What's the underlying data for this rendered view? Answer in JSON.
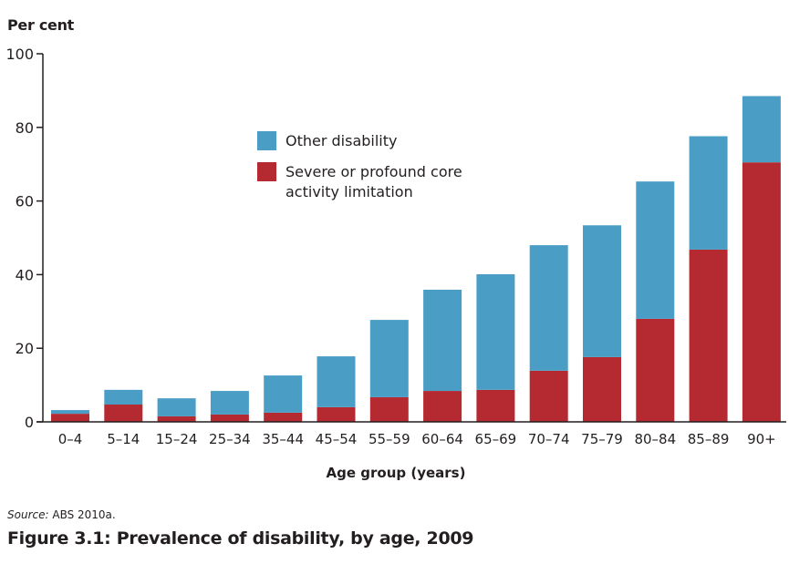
{
  "chart_data": {
    "type": "bar",
    "stacked": true,
    "title": "Figure 3.1: Prevalence of disability, by age, 2009",
    "source_prefix": "Source:",
    "source_text": "ABS 2010a.",
    "xlabel": "Age group (years)",
    "ylabel": "Per cent",
    "ylim": [
      0,
      100
    ],
    "yticks": [
      0,
      20,
      40,
      60,
      80,
      100
    ],
    "grid": false,
    "legend_position": "top-center",
    "categories": [
      "0–4",
      "5–14",
      "15–24",
      "25–34",
      "35–44",
      "45–54",
      "55–59",
      "60–64",
      "65–69",
      "70–74",
      "75–79",
      "80–84",
      "85–89",
      "90+"
    ],
    "series": [
      {
        "name": "Severe or profound core activity limitation",
        "color": "#b52a31",
        "values": [
          2.2,
          4.7,
          1.5,
          2.0,
          2.5,
          4.0,
          6.7,
          8.4,
          8.7,
          13.9,
          17.6,
          28.0,
          46.8,
          70.5
        ]
      },
      {
        "name": "Other disability",
        "color": "#4a9ec6",
        "values": [
          1.0,
          4.0,
          4.9,
          6.4,
          10.1,
          13.8,
          21.0,
          27.5,
          31.4,
          34.1,
          35.8,
          37.3,
          30.8,
          18.0
        ]
      }
    ],
    "totals": [
      3.2,
      8.7,
      6.4,
      8.4,
      12.6,
      17.8,
      27.7,
      35.9,
      40.1,
      48.0,
      53.4,
      65.3,
      77.6,
      88.5
    ]
  },
  "legend": {
    "other": "Other disability",
    "severe": "Severe or profound core activity limitation"
  }
}
